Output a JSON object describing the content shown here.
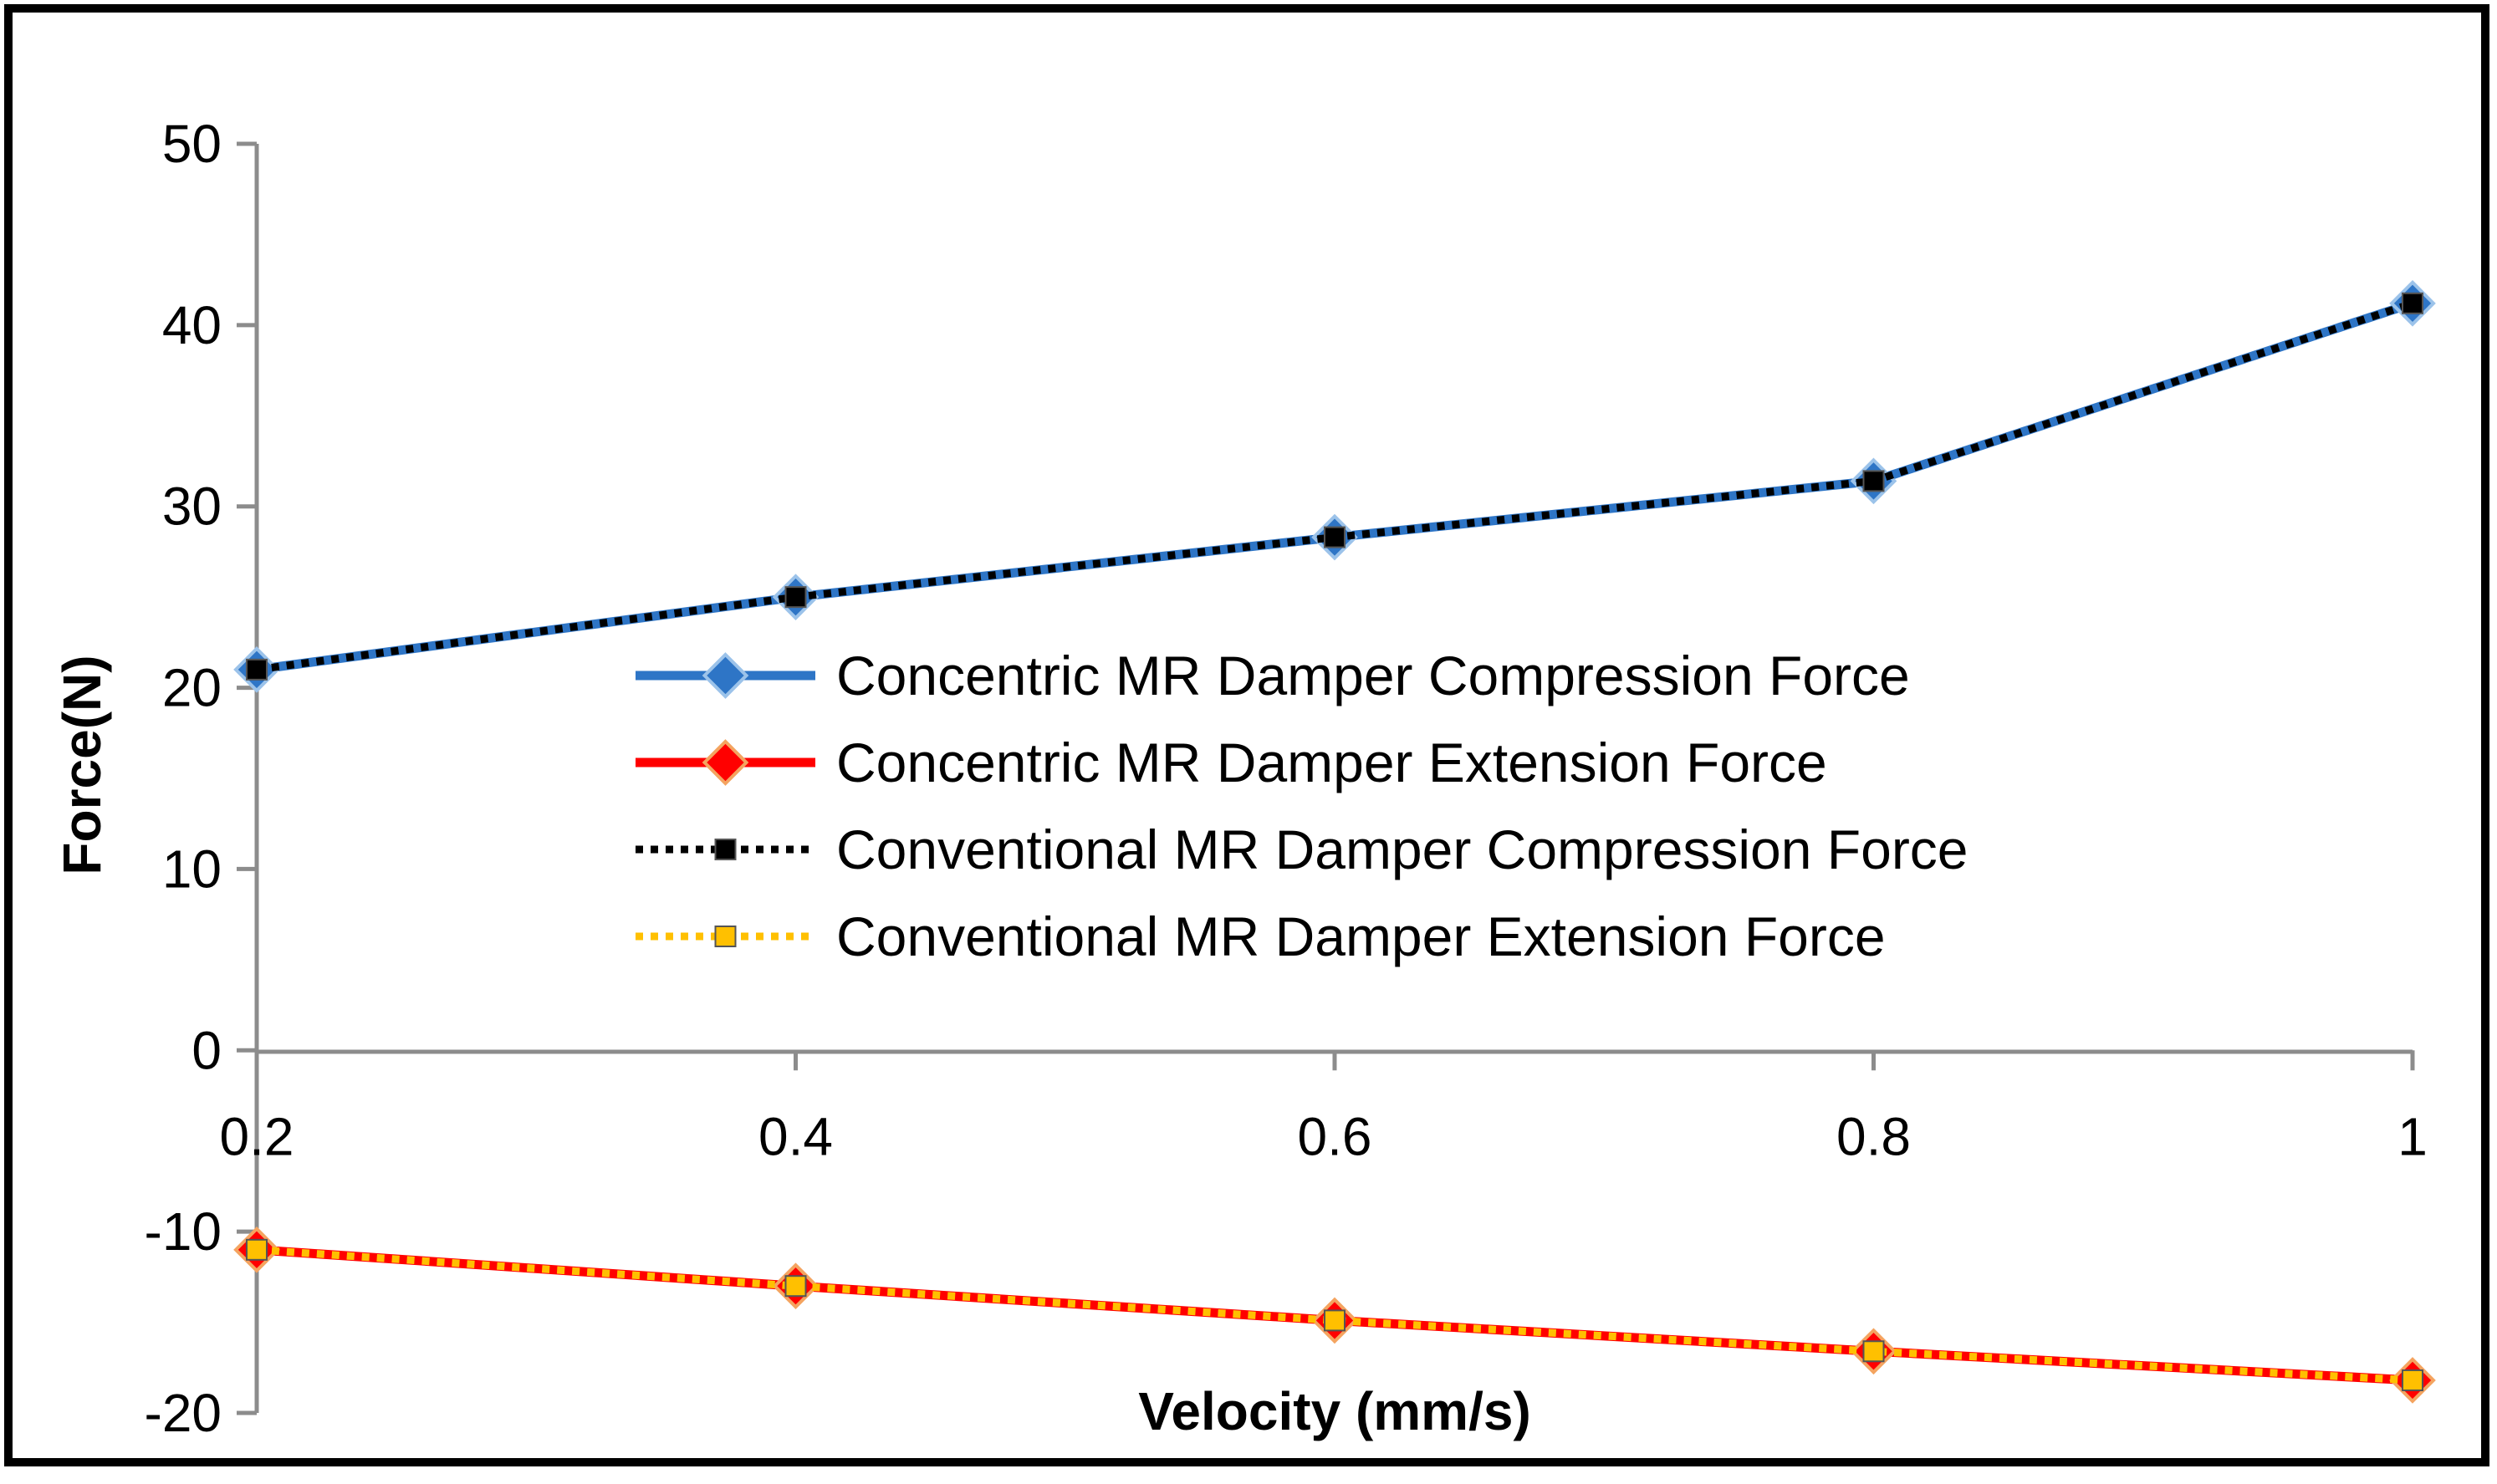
{
  "chart_data": {
    "type": "line",
    "title": "",
    "xlabel": "Velocity (mm/s)",
    "ylabel": "Force(N)",
    "x": [
      0.2,
      0.4,
      0.6,
      0.8,
      1
    ],
    "x_tick_labels": [
      "0.2",
      "0.4",
      "0.6",
      "0.8",
      "1"
    ],
    "y_tick_labels": [
      "50",
      "40",
      "30",
      "20",
      "10",
      "0",
      "-10",
      "-20"
    ],
    "y_ticks": [
      50,
      40,
      30,
      20,
      10,
      0,
      -10,
      -20
    ],
    "ylim": [
      -20,
      50
    ],
    "xlim": [
      0.2,
      1
    ],
    "grid": false,
    "legend_position": "center",
    "series": [
      {
        "name": "Concentric MR Damper Compression Force",
        "values": [
          21.0,
          25.0,
          28.3,
          31.4,
          41.2
        ],
        "color": "#2e75c6",
        "marker": "diamond",
        "line": "solid",
        "marker_color": "#2e75c6"
      },
      {
        "name": "Concentric MR Damper Extension Force",
        "values": [
          -11.0,
          -13.0,
          -14.9,
          -16.6,
          -18.2
        ],
        "color": "#ff0000",
        "marker": "diamond",
        "line": "solid",
        "marker_color": "#ff0000"
      },
      {
        "name": "Conventional MR Damper Compression Force",
        "values": [
          21.0,
          25.0,
          28.3,
          31.4,
          41.2
        ],
        "color": "#000000",
        "marker": "square",
        "line": "dotted",
        "marker_color": "#000000"
      },
      {
        "name": "Conventional MR Damper Extension Force",
        "values": [
          -11.0,
          -13.0,
          -14.9,
          -16.6,
          -18.2
        ],
        "color": "#ffc000",
        "marker": "square",
        "line": "dotted",
        "marker_color": "#ffc000"
      }
    ]
  }
}
